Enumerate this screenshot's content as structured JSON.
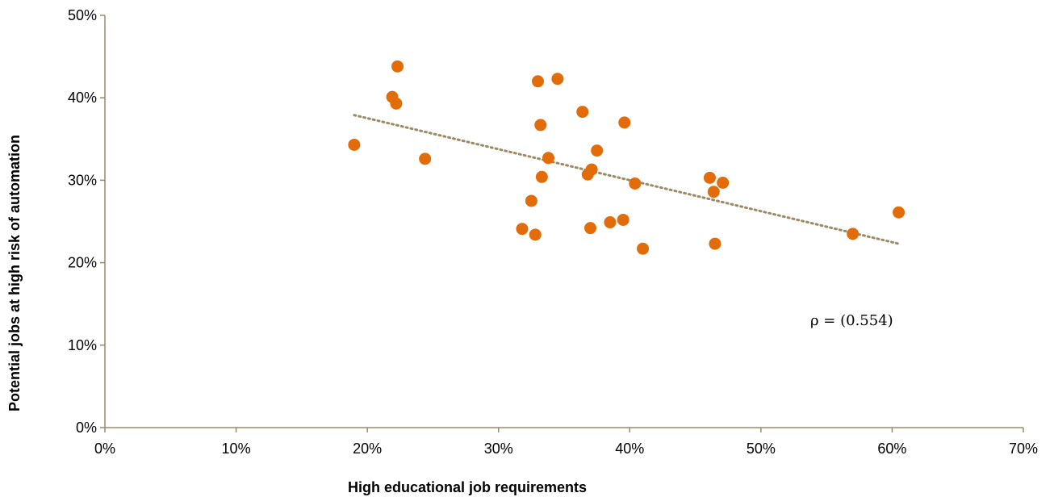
{
  "chart_data": {
    "type": "scatter",
    "xlabel": "High educational job requirements",
    "ylabel": "Potential jobs at high risk of automation",
    "xlim": [
      0,
      70
    ],
    "ylim": [
      0,
      50
    ],
    "x_ticks": [
      "0%",
      "10%",
      "20%",
      "30%",
      "40%",
      "50%",
      "60%",
      "70%"
    ],
    "y_ticks": [
      "0%",
      "10%",
      "20%",
      "30%",
      "40%",
      "50%"
    ],
    "grid": false,
    "point_color": "#E36C0A",
    "trendline_color": "#9C8A64",
    "axis_color": "#9C8A64",
    "annotation": "ρ = (0.554)",
    "trendline": {
      "x": [
        19.0,
        60.5
      ],
      "y": [
        37.9,
        22.3
      ]
    },
    "points": [
      {
        "x": 19.0,
        "y": 34.3
      },
      {
        "x": 21.9,
        "y": 40.1
      },
      {
        "x": 22.2,
        "y": 39.3
      },
      {
        "x": 22.3,
        "y": 43.8
      },
      {
        "x": 24.4,
        "y": 32.6
      },
      {
        "x": 31.8,
        "y": 24.1
      },
      {
        "x": 32.5,
        "y": 27.5
      },
      {
        "x": 32.8,
        "y": 23.4
      },
      {
        "x": 33.0,
        "y": 42.0
      },
      {
        "x": 33.2,
        "y": 36.7
      },
      {
        "x": 33.3,
        "y": 30.4
      },
      {
        "x": 33.8,
        "y": 32.7
      },
      {
        "x": 34.5,
        "y": 42.3
      },
      {
        "x": 36.4,
        "y": 38.3
      },
      {
        "x": 36.8,
        "y": 30.7
      },
      {
        "x": 37.0,
        "y": 24.2
      },
      {
        "x": 37.1,
        "y": 31.3
      },
      {
        "x": 37.5,
        "y": 33.6
      },
      {
        "x": 38.5,
        "y": 24.9
      },
      {
        "x": 39.5,
        "y": 25.2
      },
      {
        "x": 39.6,
        "y": 37.0
      },
      {
        "x": 40.4,
        "y": 29.6
      },
      {
        "x": 41.0,
        "y": 21.7
      },
      {
        "x": 46.1,
        "y": 30.3
      },
      {
        "x": 46.4,
        "y": 28.6
      },
      {
        "x": 46.5,
        "y": 22.3
      },
      {
        "x": 47.1,
        "y": 29.7
      },
      {
        "x": 57.0,
        "y": 23.5
      },
      {
        "x": 60.5,
        "y": 26.1
      }
    ]
  }
}
